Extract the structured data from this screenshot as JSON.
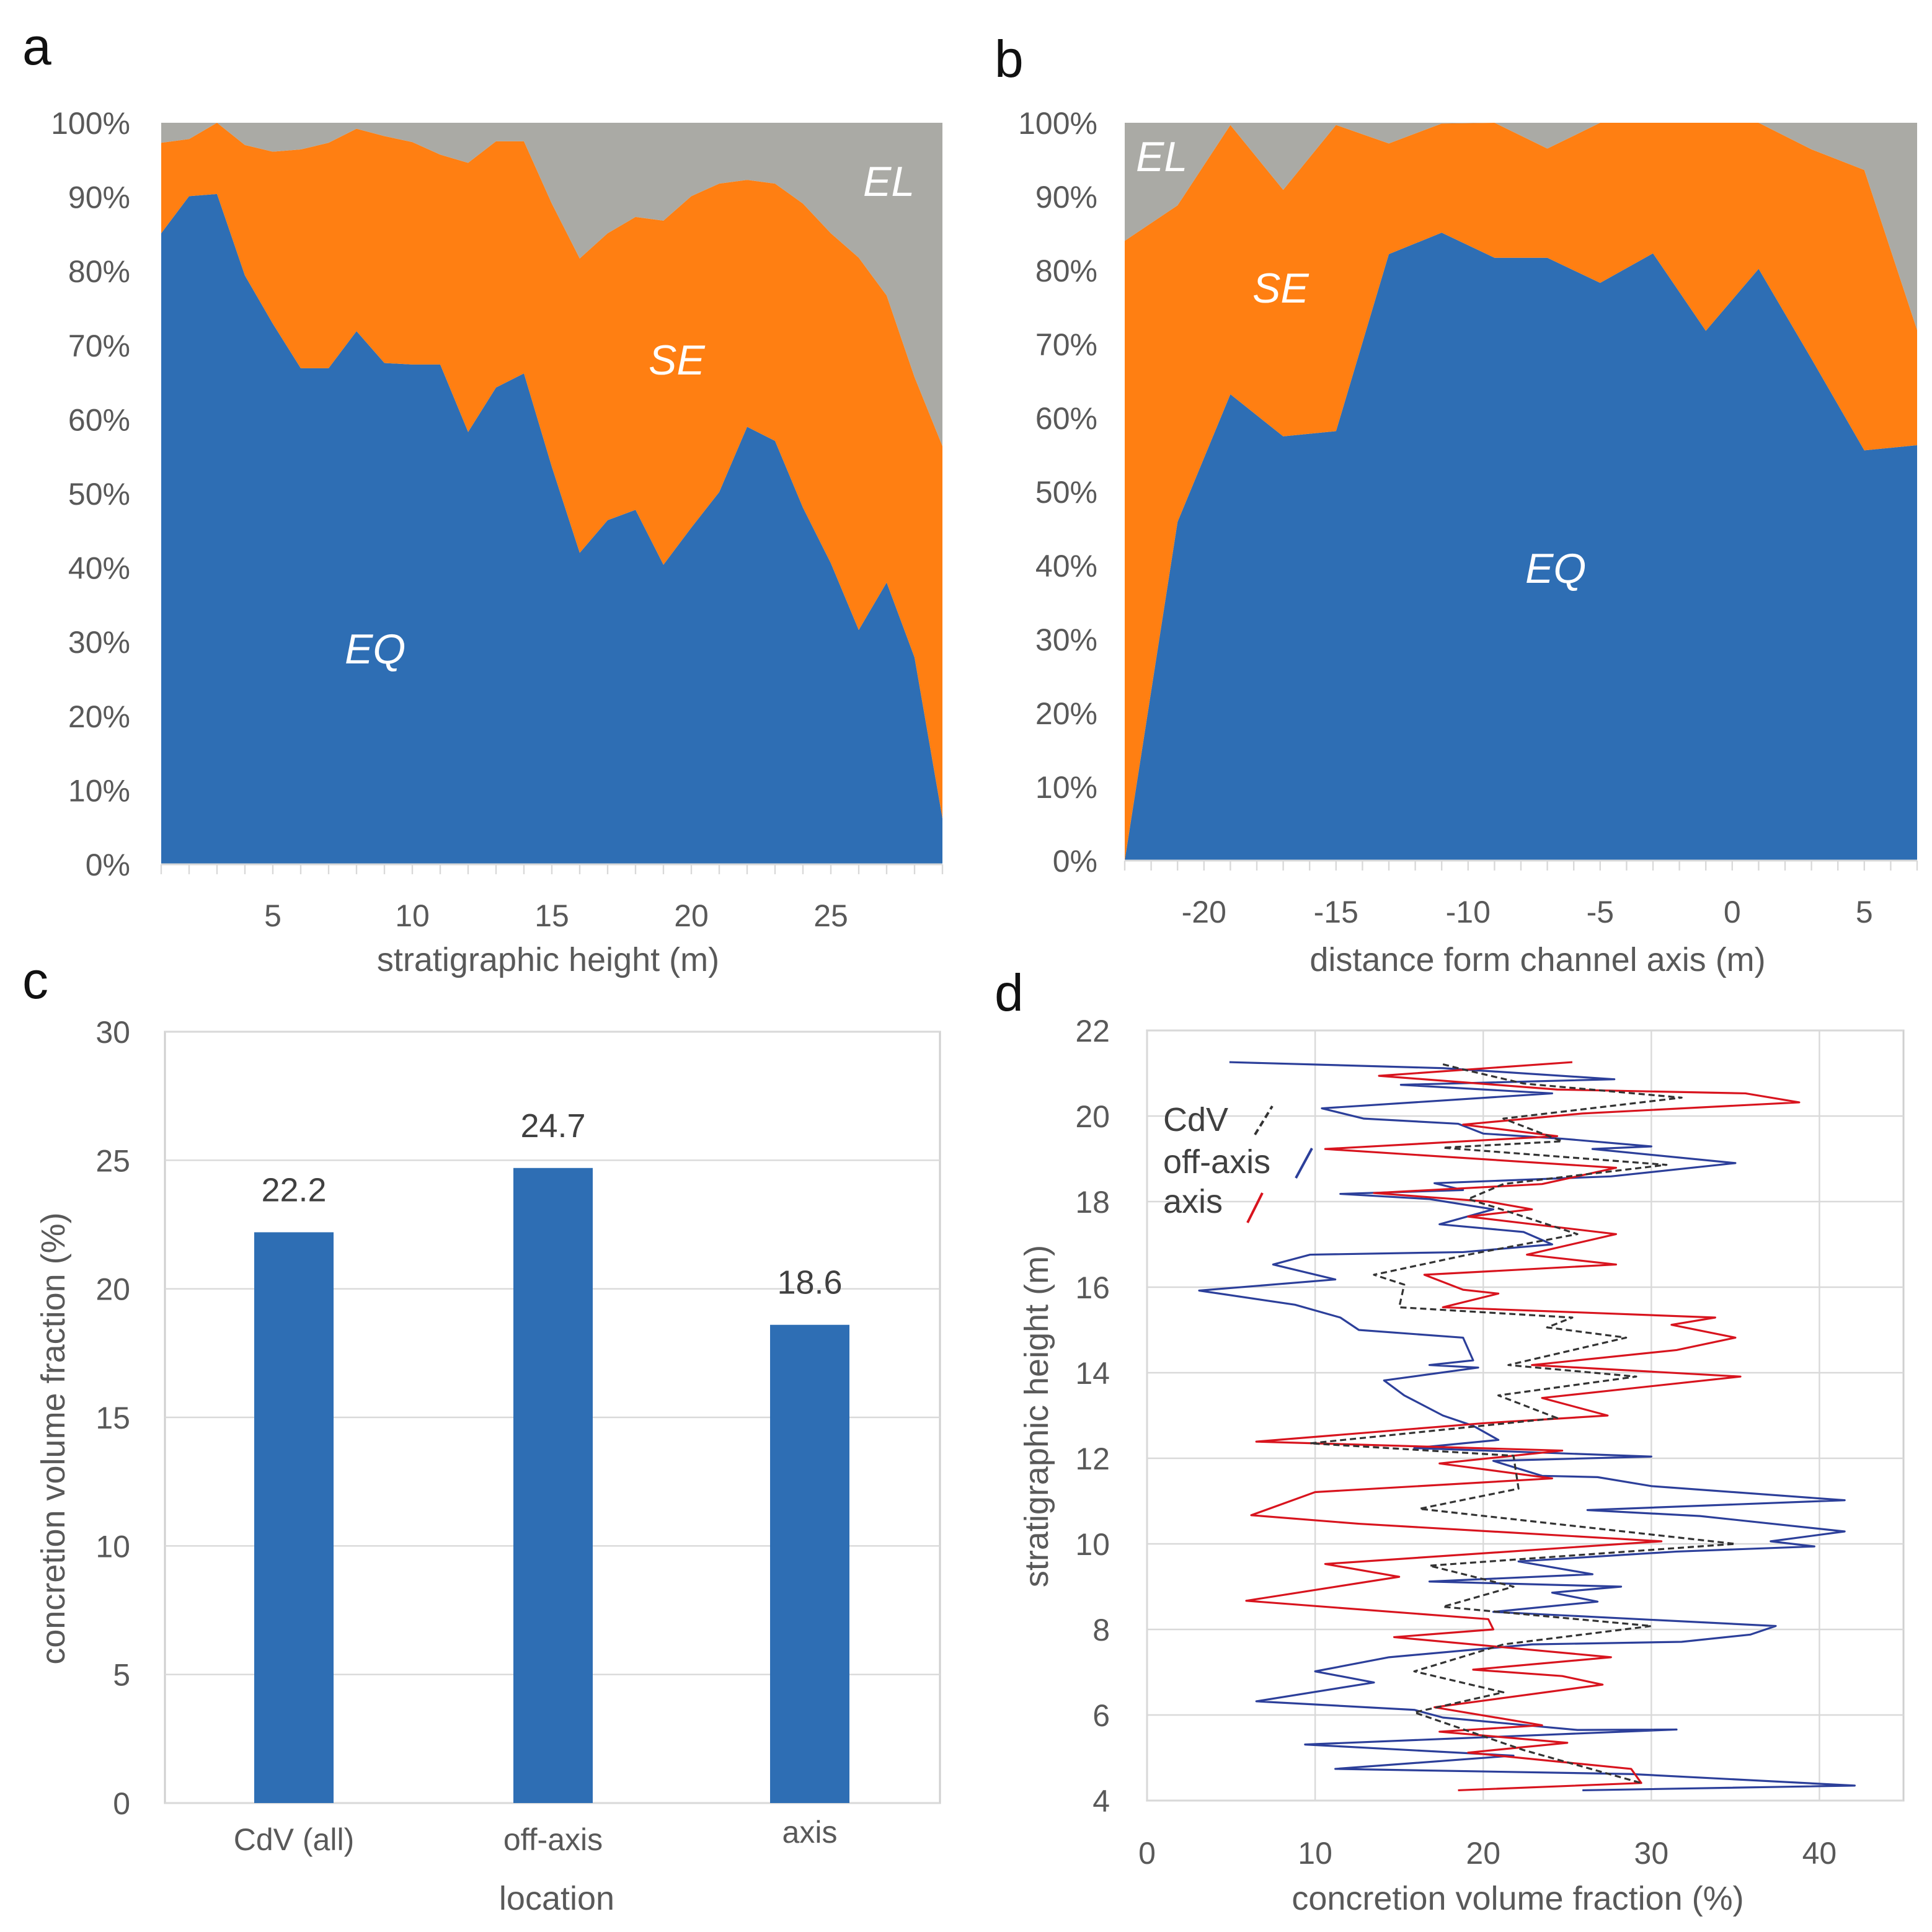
{
  "panels": {
    "a": "a",
    "b": "b",
    "c": "c",
    "d": "d"
  },
  "colors": {
    "EQ": "#2e6eb4",
    "SE": "#ff7f12",
    "EL": "#aaaaa5",
    "bar": "#2e6eb4",
    "offaxis": "#2c3f9a",
    "axis": "#d8141e",
    "cdv": "#333333"
  },
  "chart_data": [
    {
      "id": "a",
      "type": "area",
      "stacked": "percent",
      "xlabel": "stratigraphic height (m)",
      "ylabel": "",
      "x": [
        1,
        2,
        3,
        4,
        5,
        6,
        7,
        8,
        9,
        10,
        11,
        12,
        13,
        14,
        15,
        16,
        17,
        18,
        19,
        20,
        21,
        22,
        23,
        24,
        25,
        26,
        27,
        28,
        29
      ],
      "xticks": [
        5,
        10,
        15,
        20,
        25
      ],
      "yticks": [
        "0%",
        "10%",
        "20%",
        "30%",
        "40%",
        "50%",
        "60%",
        "70%",
        "80%",
        "90%",
        "100%"
      ],
      "ylim": [
        0,
        100
      ],
      "series": [
        {
          "name": "EQ",
          "values": [
            85.1,
            90.1,
            90.4,
            79.4,
            72.9,
            66.9,
            66.9,
            71.9,
            67.6,
            67.4,
            67.4,
            58.3,
            64.3,
            66.2,
            53.6,
            42.0,
            46.4,
            47.8,
            40.4,
            45.4,
            50.2,
            59.0,
            57.1,
            48.1,
            40.6,
            31.6,
            38.0,
            27.9,
            6.2
          ]
        },
        {
          "name": "SE",
          "values": [
            12.2,
            7.7,
            9.6,
            17.6,
            23.2,
            29.5,
            30.4,
            27.3,
            30.6,
            30.0,
            28.3,
            36.3,
            33.2,
            31.3,
            35.5,
            39.7,
            38.7,
            39.5,
            46.4,
            44.7,
            41.6,
            33.3,
            34.7,
            41.0,
            44.5,
            50.2,
            38.7,
            37.8,
            50.2
          ]
        },
        {
          "name": "EL",
          "values": [
            2.7,
            2.2,
            0,
            3.0,
            3.9,
            3.6,
            2.7,
            0.8,
            1.8,
            2.6,
            4.3,
            5.4,
            2.5,
            2.5,
            10.9,
            18.3,
            14.9,
            12.7,
            13.2,
            9.9,
            8.2,
            7.7,
            8.2,
            10.9,
            14.9,
            18.2,
            23.3,
            34.3,
            43.6
          ]
        }
      ],
      "annotations": [
        "EQ",
        "SE",
        "EL"
      ]
    },
    {
      "id": "b",
      "type": "area",
      "stacked": "percent",
      "xlabel": "distance form channel axis (m)",
      "ylabel": "",
      "x": [
        -23,
        -21,
        -19,
        -17,
        -15,
        -13,
        -11,
        -9,
        -7,
        -5,
        -3,
        -1,
        1,
        3,
        5,
        7
      ],
      "xticks": [
        -20,
        -15,
        -10,
        -5,
        0,
        5
      ],
      "yticks": [
        "0%",
        "10%",
        "20%",
        "30%",
        "40%",
        "50%",
        "60%",
        "70%",
        "80%",
        "90%",
        "100%"
      ],
      "ylim": [
        0,
        100
      ],
      "series": [
        {
          "name": "EQ",
          "values": [
            0,
            45.9,
            63.2,
            57.5,
            58.2,
            82.2,
            85.1,
            81.7,
            81.7,
            78.3,
            82.3,
            71.8,
            80.2,
            68.0,
            55.6,
            56.3
          ]
        },
        {
          "name": "SE",
          "values": [
            84.0,
            42.9,
            36.5,
            33.4,
            41.5,
            15.0,
            14.8,
            18.3,
            14.8,
            21.7,
            17.7,
            28.2,
            19.8,
            28.4,
            38.0,
            15.6
          ]
        },
        {
          "name": "EL",
          "values": [
            16.0,
            11.2,
            0.3,
            9.1,
            0.3,
            2.8,
            0.1,
            0,
            3.5,
            0,
            0,
            0,
            0,
            3.6,
            6.4,
            28.1
          ]
        }
      ],
      "annotations": [
        "EQ",
        "SE",
        "EL"
      ]
    },
    {
      "id": "c",
      "type": "bar",
      "xlabel": "location",
      "ylabel": "concretion volume fraction (%)",
      "categories": [
        "CdV (all)",
        "off-axis",
        "axis"
      ],
      "values": [
        22.2,
        24.7,
        18.6
      ],
      "value_labels": [
        "22.2",
        "24.7",
        "18.6"
      ],
      "yticks": [
        "0",
        "5",
        "10",
        "15",
        "20",
        "25",
        "30"
      ],
      "ylim": [
        0,
        30
      ],
      "grid": true
    },
    {
      "id": "d",
      "type": "line",
      "xlabel": "concretion volume fraction (%)",
      "ylabel": "stratigraphic height (m)",
      "xticks": [
        "0",
        "10",
        "20",
        "30",
        "40"
      ],
      "yticks": [
        "4",
        "6",
        "8",
        "10",
        "12",
        "14",
        "16",
        "18",
        "20",
        "22"
      ],
      "xlim": [
        0,
        45
      ],
      "ylim": [
        4,
        22
      ],
      "grid": true,
      "legend": {
        "position": "top-left",
        "entries": [
          "CdV",
          "off-axis",
          "axis"
        ]
      },
      "series": [
        {
          "name": "off-axis",
          "points": [
            [
              4.9,
              21.26
            ],
            [
              17.6,
              21.12
            ],
            [
              27.8,
              20.86
            ],
            [
              15.1,
              20.73
            ],
            [
              24.1,
              20.53
            ],
            [
              10.4,
              20.18
            ],
            [
              12.9,
              19.94
            ],
            [
              18.5,
              19.82
            ],
            [
              20.0,
              19.59
            ],
            [
              24.7,
              19.47
            ],
            [
              30.0,
              19.29
            ],
            [
              26.5,
              19.23
            ],
            [
              35.0,
              18.9
            ],
            [
              27.6,
              18.59
            ],
            [
              17.1,
              18.43
            ],
            [
              18.8,
              18.27
            ],
            [
              11.5,
              18.18
            ],
            [
              16.8,
              18.06
            ],
            [
              20.6,
              17.82
            ],
            [
              17.4,
              17.47
            ],
            [
              22.4,
              17.29
            ],
            [
              24.1,
              17.0
            ],
            [
              18.8,
              16.82
            ],
            [
              9.7,
              16.76
            ],
            [
              7.5,
              16.53
            ],
            [
              11.2,
              16.18
            ],
            [
              3.1,
              15.92
            ],
            [
              8.8,
              15.59
            ],
            [
              11.5,
              15.29
            ],
            [
              12.6,
              15.0
            ],
            [
              18.8,
              14.82
            ],
            [
              19.4,
              14.29
            ],
            [
              16.8,
              14.18
            ],
            [
              19.7,
              14.12
            ],
            [
              14.1,
              13.82
            ],
            [
              15.3,
              13.47
            ],
            [
              17.6,
              13.0
            ],
            [
              19.4,
              12.76
            ],
            [
              20.9,
              12.43
            ],
            [
              15.9,
              12.24
            ],
            [
              30.0,
              12.04
            ],
            [
              20.6,
              11.94
            ],
            [
              23.5,
              11.59
            ],
            [
              26.8,
              11.56
            ],
            [
              30.0,
              11.35
            ],
            [
              41.5,
              11.02
            ],
            [
              26.2,
              10.79
            ],
            [
              32.9,
              10.65
            ],
            [
              41.5,
              10.29
            ],
            [
              37.1,
              10.06
            ],
            [
              39.7,
              9.94
            ],
            [
              31.5,
              9.82
            ],
            [
              22.1,
              9.59
            ],
            [
              26.5,
              9.29
            ],
            [
              16.8,
              9.12
            ],
            [
              28.2,
              9.0
            ],
            [
              24.1,
              8.86
            ],
            [
              26.8,
              8.65
            ],
            [
              20.6,
              8.41
            ],
            [
              37.4,
              8.08
            ],
            [
              35.9,
              7.88
            ],
            [
              31.8,
              7.71
            ],
            [
              22.9,
              7.65
            ],
            [
              14.4,
              7.35
            ],
            [
              10.0,
              7.02
            ],
            [
              13.5,
              6.76
            ],
            [
              6.5,
              6.32
            ],
            [
              15.9,
              6.12
            ],
            [
              17.6,
              5.94
            ],
            [
              25.6,
              5.65
            ],
            [
              31.5,
              5.66
            ],
            [
              9.4,
              5.31
            ],
            [
              21.8,
              5.05
            ],
            [
              11.2,
              4.74
            ],
            [
              28.8,
              4.62
            ],
            [
              42.1,
              4.35
            ],
            [
              25.9,
              4.24
            ]
          ]
        },
        {
          "name": "axis",
          "points": [
            [
              25.3,
              21.26
            ],
            [
              13.8,
              20.94
            ],
            [
              24.4,
              20.62
            ],
            [
              35.6,
              20.53
            ],
            [
              38.8,
              20.32
            ],
            [
              25.9,
              20.06
            ],
            [
              18.8,
              19.8
            ],
            [
              24.4,
              19.53
            ],
            [
              10.6,
              19.23
            ],
            [
              27.9,
              18.79
            ],
            [
              23.5,
              18.41
            ],
            [
              13.5,
              18.2
            ],
            [
              20.3,
              18.0
            ],
            [
              22.9,
              17.82
            ],
            [
              19.1,
              17.65
            ],
            [
              27.9,
              17.24
            ],
            [
              22.6,
              16.76
            ],
            [
              27.9,
              16.53
            ],
            [
              16.5,
              16.29
            ],
            [
              18.8,
              15.94
            ],
            [
              20.9,
              15.85
            ],
            [
              17.6,
              15.53
            ],
            [
              33.8,
              15.29
            ],
            [
              31.2,
              15.12
            ],
            [
              35.0,
              14.82
            ],
            [
              31.5,
              14.53
            ],
            [
              22.9,
              14.18
            ],
            [
              35.3,
              13.91
            ],
            [
              23.5,
              13.41
            ],
            [
              27.4,
              13.0
            ],
            [
              20.0,
              12.82
            ],
            [
              6.5,
              12.39
            ],
            [
              24.7,
              12.18
            ],
            [
              17.4,
              11.88
            ],
            [
              24.1,
              11.53
            ],
            [
              10.0,
              11.21
            ],
            [
              6.2,
              10.67
            ],
            [
              12.6,
              10.47
            ],
            [
              30.6,
              10.06
            ],
            [
              10.6,
              9.53
            ],
            [
              15.0,
              9.23
            ],
            [
              5.9,
              8.67
            ],
            [
              20.3,
              8.24
            ],
            [
              20.6,
              8.0
            ],
            [
              14.7,
              7.82
            ],
            [
              27.6,
              7.35
            ],
            [
              19.4,
              7.06
            ],
            [
              24.7,
              6.91
            ],
            [
              27.1,
              6.71
            ],
            [
              17.1,
              6.18
            ],
            [
              23.5,
              5.76
            ],
            [
              17.4,
              5.61
            ],
            [
              25.0,
              5.35
            ],
            [
              19.1,
              5.12
            ],
            [
              28.8,
              4.74
            ],
            [
              29.4,
              4.41
            ],
            [
              18.5,
              4.24
            ]
          ]
        },
        {
          "name": "CdV",
          "points": [
            [
              17.6,
              21.21
            ],
            [
              18.8,
              21.09
            ],
            [
              22.4,
              20.76
            ],
            [
              31.8,
              20.43
            ],
            [
              21.2,
              19.94
            ],
            [
              24.7,
              19.41
            ],
            [
              17.6,
              19.26
            ],
            [
              30.9,
              18.86
            ],
            [
              21.2,
              18.41
            ],
            [
              19.1,
              18.06
            ],
            [
              20.6,
              17.88
            ],
            [
              25.6,
              17.24
            ],
            [
              19.1,
              16.76
            ],
            [
              13.5,
              16.29
            ],
            [
              15.3,
              16.06
            ],
            [
              15.0,
              15.53
            ],
            [
              25.3,
              15.29
            ],
            [
              23.8,
              15.06
            ],
            [
              28.5,
              14.82
            ],
            [
              21.5,
              14.18
            ],
            [
              29.1,
              13.91
            ],
            [
              20.9,
              13.47
            ],
            [
              24.4,
              12.94
            ],
            [
              9.7,
              12.35
            ],
            [
              21.8,
              12.06
            ],
            [
              22.1,
              11.29
            ],
            [
              16.2,
              10.82
            ],
            [
              35.0,
              10.0
            ],
            [
              16.8,
              9.49
            ],
            [
              21.8,
              9.0
            ],
            [
              17.6,
              8.53
            ],
            [
              30.0,
              8.08
            ],
            [
              21.2,
              7.65
            ],
            [
              15.9,
              7.02
            ],
            [
              21.2,
              6.53
            ],
            [
              15.9,
              6.06
            ],
            [
              22.4,
              5.18
            ],
            [
              29.4,
              4.41
            ]
          ]
        }
      ]
    }
  ]
}
